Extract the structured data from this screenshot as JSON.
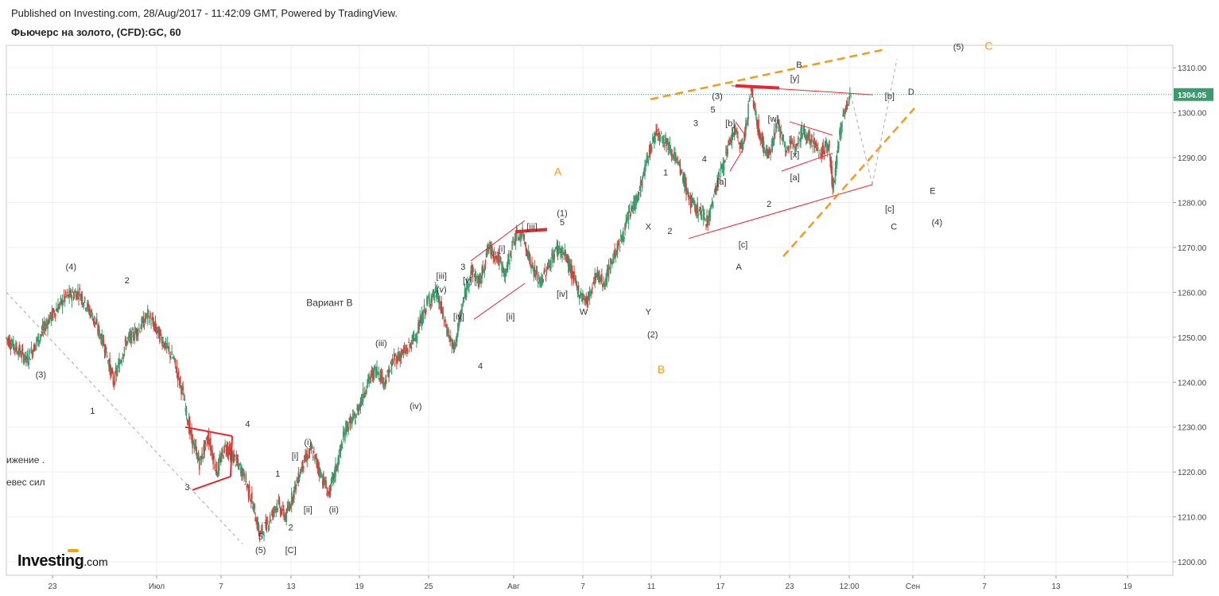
{
  "header": {
    "published": "Published on Investing.com, 28/Aug/2017 - 11:42:09 GMT, Powered by TradingView.",
    "symbol": "Фьючерс на золото, (CFD):GC, 60"
  },
  "logo": {
    "text": "Investing",
    "suffix": ".com"
  },
  "colors": {
    "up": "#3a9b6c",
    "down": "#c5463c",
    "red": "#e8282e",
    "orange": "#f49b1b",
    "grid": "#efefef",
    "price": "#3a9b6c"
  },
  "chart_data": {
    "type": "candlestick",
    "title": "",
    "ylim": [
      1197,
      1315
    ],
    "y_ticks": [
      "1200.00",
      "1210.00",
      "1220.00",
      "1230.00",
      "1240.00",
      "1250.00",
      "1260.00",
      "1270.00",
      "1280.00",
      "1290.00",
      "1300.00",
      "1310.00"
    ],
    "x_ticks": [
      "23",
      "Июл",
      "7",
      "13",
      "19",
      "25",
      "Авг",
      "7",
      "11",
      "17",
      "23",
      "12:00",
      "Сен",
      "7",
      "13",
      "19"
    ],
    "last_price": "1304.05",
    "price_path": [
      [
        0,
        1250
      ],
      [
        5,
        1245
      ],
      [
        10,
        1254
      ],
      [
        14,
        1259
      ],
      [
        17,
        1260
      ],
      [
        20,
        1255
      ],
      [
        23,
        1248
      ],
      [
        25,
        1240
      ],
      [
        28,
        1249
      ],
      [
        31,
        1252
      ],
      [
        33,
        1255
      ],
      [
        36,
        1250
      ],
      [
        39,
        1245
      ],
      [
        41,
        1238
      ],
      [
        43,
        1228
      ],
      [
        45,
        1222
      ],
      [
        47,
        1228
      ],
      [
        49,
        1220
      ],
      [
        51,
        1226
      ],
      [
        53,
        1223
      ],
      [
        55,
        1220
      ],
      [
        57,
        1214
      ],
      [
        59,
        1206
      ],
      [
        61,
        1209
      ],
      [
        63,
        1213
      ],
      [
        65,
        1210
      ],
      [
        67,
        1216
      ],
      [
        69,
        1222
      ],
      [
        71,
        1225
      ],
      [
        73,
        1220
      ],
      [
        75,
        1215
      ],
      [
        77,
        1222
      ],
      [
        79,
        1230
      ],
      [
        81,
        1232
      ],
      [
        84,
        1240
      ],
      [
        86,
        1243
      ],
      [
        88,
        1240
      ],
      [
        90,
        1245
      ],
      [
        93,
        1247
      ],
      [
        95,
        1250
      ],
      [
        98,
        1258
      ],
      [
        100,
        1260
      ],
      [
        102,
        1253
      ],
      [
        104,
        1247
      ],
      [
        106,
        1257
      ],
      [
        108,
        1265
      ],
      [
        110,
        1262
      ],
      [
        112,
        1270
      ],
      [
        114,
        1268
      ],
      [
        116,
        1264
      ],
      [
        118,
        1272
      ],
      [
        120,
        1273
      ],
      [
        122,
        1266
      ],
      [
        124,
        1262
      ],
      [
        126,
        1266
      ],
      [
        128,
        1270
      ],
      [
        130,
        1268
      ],
      [
        133,
        1260
      ],
      [
        135,
        1258
      ],
      [
        137,
        1264
      ],
      [
        139,
        1262
      ],
      [
        141,
        1268
      ],
      [
        143,
        1272
      ],
      [
        145,
        1278
      ],
      [
        147,
        1282
      ],
      [
        149,
        1290
      ],
      [
        151,
        1296
      ],
      [
        153,
        1294
      ],
      [
        155,
        1291
      ],
      [
        157,
        1286
      ],
      [
        159,
        1280
      ],
      [
        161,
        1278
      ],
      [
        163,
        1276
      ],
      [
        165,
        1284
      ],
      [
        167,
        1290
      ],
      [
        169,
        1296
      ],
      [
        171,
        1292
      ],
      [
        173,
        1305
      ],
      [
        175,
        1295
      ],
      [
        177,
        1290
      ],
      [
        179,
        1298
      ],
      [
        181,
        1292
      ],
      [
        183,
        1293
      ],
      [
        185,
        1296
      ],
      [
        187,
        1294
      ],
      [
        189,
        1291
      ],
      [
        191,
        1293
      ],
      [
        192,
        1283
      ],
      [
        194,
        1298
      ],
      [
        196,
        1304
      ]
    ],
    "annotations": {
      "waves_black": [
        {
          "x": 15,
          "y": 1265,
          "t": "(4)"
        },
        {
          "x": 8,
          "y": 1241,
          "t": "(3)"
        },
        {
          "x": 20,
          "y": 1233,
          "t": "1"
        },
        {
          "x": 28,
          "y": 1262,
          "t": "2"
        },
        {
          "x": 42,
          "y": 1216,
          "t": "3"
        },
        {
          "x": 56,
          "y": 1230,
          "t": "4"
        },
        {
          "x": 59,
          "y": 1205,
          "t": "5"
        },
        {
          "x": 59,
          "y": 1202,
          "t": "(5)"
        },
        {
          "x": 63,
          "y": 1219,
          "t": "1"
        },
        {
          "x": 66,
          "y": 1207,
          "t": "2"
        },
        {
          "x": 66,
          "y": 1202,
          "t": "[C]"
        },
        {
          "x": 70,
          "y": 1226,
          "t": "(i)"
        },
        {
          "x": 67,
          "y": 1223,
          "t": "[i]"
        },
        {
          "x": 70,
          "y": 1211,
          "t": "[ii]"
        },
        {
          "x": 76,
          "y": 1211,
          "t": "(ii)"
        },
        {
          "x": 87,
          "y": 1248,
          "t": "(iii)"
        },
        {
          "x": 95,
          "y": 1234,
          "t": "(iv)"
        },
        {
          "x": 101,
          "y": 1263,
          "t": "[iii]"
        },
        {
          "x": 101,
          "y": 1260,
          "t": "(v)"
        },
        {
          "x": 105,
          "y": 1254,
          "t": "[iv]"
        },
        {
          "x": 106,
          "y": 1265,
          "t": "3"
        },
        {
          "x": 107,
          "y": 1262,
          "t": "[v]"
        },
        {
          "x": 110,
          "y": 1243,
          "t": "4"
        },
        {
          "x": 115,
          "y": 1269,
          "t": "[i]"
        },
        {
          "x": 117,
          "y": 1254,
          "t": "[ii]"
        },
        {
          "x": 122,
          "y": 1274,
          "t": "[iii]"
        },
        {
          "x": 129,
          "y": 1277,
          "t": "(1)"
        },
        {
          "x": 129,
          "y": 1275,
          "t": "5"
        },
        {
          "x": 129,
          "y": 1259,
          "t": "[iv]"
        },
        {
          "x": 134,
          "y": 1255,
          "t": "W"
        },
        {
          "x": 149,
          "y": 1274,
          "t": "X"
        },
        {
          "x": 154,
          "y": 1273,
          "t": "2"
        },
        {
          "x": 153,
          "y": 1286,
          "t": "1"
        },
        {
          "x": 149,
          "y": 1255,
          "t": "Y"
        },
        {
          "x": 150,
          "y": 1250,
          "t": "(2)"
        },
        {
          "x": 160,
          "y": 1297,
          "t": "3"
        },
        {
          "x": 162,
          "y": 1289,
          "t": "4"
        },
        {
          "x": 164,
          "y": 1300,
          "t": "5"
        },
        {
          "x": 168,
          "y": 1297,
          "t": "[b]"
        },
        {
          "x": 166,
          "y": 1284,
          "t": "[a]"
        },
        {
          "x": 171,
          "y": 1270,
          "t": "[c]"
        },
        {
          "x": 170,
          "y": 1265,
          "t": "A"
        },
        {
          "x": 177,
          "y": 1279,
          "t": "2"
        },
        {
          "x": 165,
          "y": 1303,
          "t": "(3)"
        },
        {
          "x": 178,
          "y": 1298,
          "t": "[w]"
        },
        {
          "x": 183,
          "y": 1290,
          "t": "[x]"
        },
        {
          "x": 183,
          "y": 1285,
          "t": "[a]"
        },
        {
          "x": 183,
          "y": 1307,
          "t": "[y]"
        },
        {
          "x": 184,
          "y": 1310,
          "t": "B"
        },
        {
          "x": 205,
          "y": 1303,
          "t": "[b]"
        },
        {
          "x": 205,
          "y": 1278,
          "t": "[c]"
        },
        {
          "x": 206,
          "y": 1274,
          "t": "C"
        },
        {
          "x": 210,
          "y": 1304,
          "t": "D"
        },
        {
          "x": 215,
          "y": 1282,
          "t": "E"
        },
        {
          "x": 216,
          "y": 1275,
          "t": "(4)"
        },
        {
          "x": 221,
          "y": 1314,
          "t": "(5)"
        }
      ],
      "waves_orange": [
        {
          "x": 128,
          "y": 1286,
          "t": "A"
        },
        {
          "x": 152,
          "y": 1242,
          "t": "B"
        },
        {
          "x": 228,
          "y": 1314,
          "t": "C"
        }
      ],
      "text_labels": [
        {
          "x": 75,
          "y": 1257,
          "t": "Вариант В"
        },
        {
          "x": 0,
          "y": 1222,
          "t": "ижение ."
        },
        {
          "x": 0,
          "y": 1217,
          "t": "евес сил"
        }
      ]
    }
  }
}
